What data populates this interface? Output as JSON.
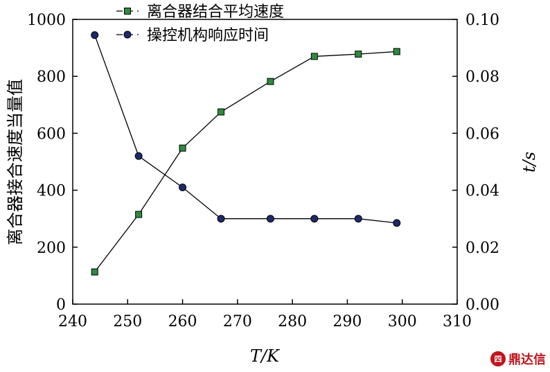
{
  "chart_data": {
    "type": "line",
    "x": [
      244,
      252,
      260,
      267,
      276,
      284,
      292,
      299
    ],
    "xlabel": "T/K",
    "ylabel": "离合器接合速度当量值",
    "y2label": "t/s",
    "xlim": [
      240,
      310
    ],
    "ylim": [
      0,
      1000
    ],
    "y2lim": [
      0.0,
      0.1
    ],
    "xticks": [
      "240",
      "250",
      "260",
      "270",
      "280",
      "290",
      "300",
      "310"
    ],
    "yticks": [
      "0",
      "200",
      "400",
      "600",
      "800",
      "1000"
    ],
    "y2ticks": [
      "0.00",
      "0.02",
      "0.04",
      "0.06",
      "0.08",
      "0.10"
    ],
    "grid": false,
    "legend_position": "top",
    "series": [
      {
        "name": "离合器结合平均速度",
        "axis": "left",
        "marker": "square",
        "color": "#2e8b3e",
        "values": [
          113,
          315,
          548,
          675,
          782,
          870,
          878,
          887
        ]
      },
      {
        "name": "操控机构响应时间",
        "axis": "right",
        "marker": "circle",
        "color": "#1f2a6b",
        "values": [
          0.0945,
          0.052,
          0.041,
          0.03,
          0.03,
          0.03,
          0.03,
          0.0285
        ]
      }
    ]
  },
  "watermark": {
    "seal_text": "四",
    "text": "鼎达信"
  }
}
